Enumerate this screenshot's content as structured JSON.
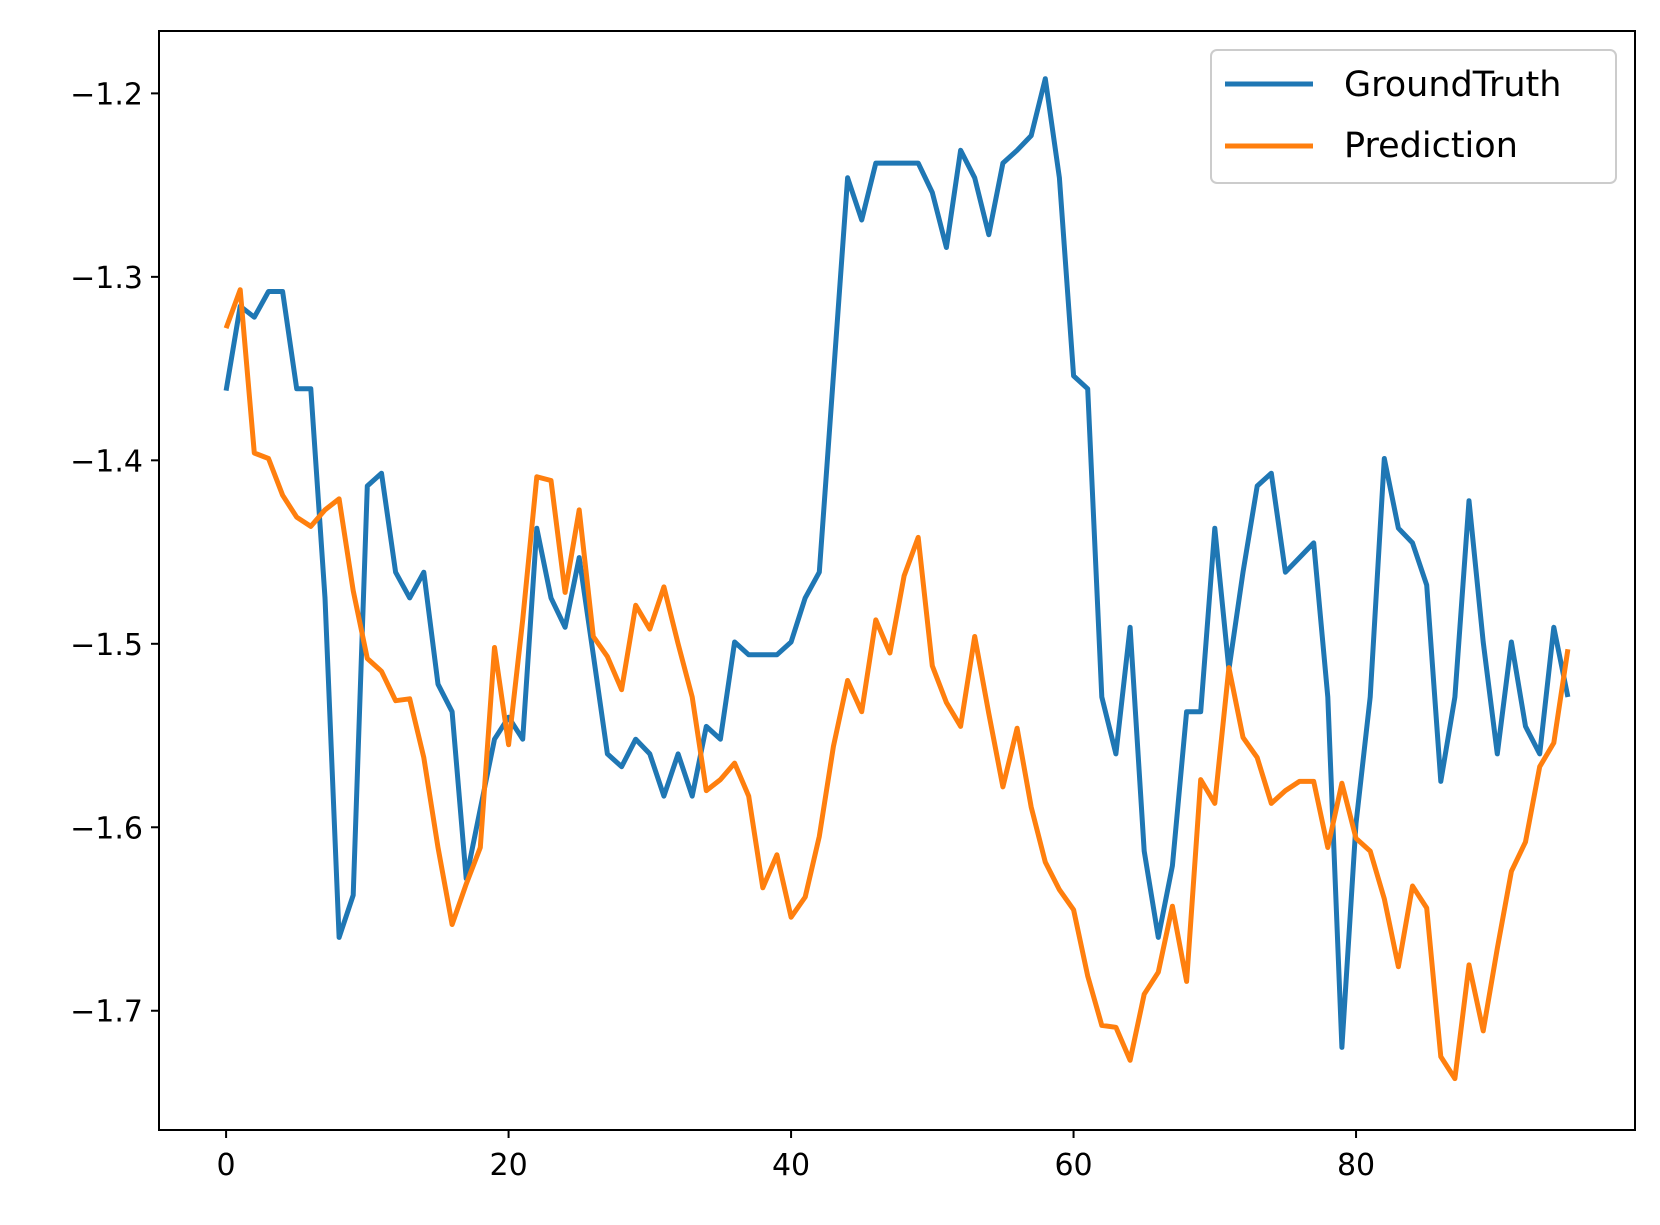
{
  "chart_data": {
    "type": "line",
    "title": "",
    "xlabel": "",
    "ylabel": "",
    "xlim": [
      -4.75,
      99.75
    ],
    "ylim": [
      -1.765,
      -1.166
    ],
    "xticks": [
      0,
      20,
      40,
      60,
      80
    ],
    "yticks": [
      -1.2,
      -1.3,
      -1.4,
      -1.5,
      -1.6,
      -1.7
    ],
    "ytick_labels": [
      "−1.2",
      "−1.3",
      "−1.4",
      "−1.5",
      "−1.6",
      "−1.7"
    ],
    "xtick_labels": [
      "0",
      "20",
      "40",
      "60",
      "80"
    ],
    "grid": false,
    "legend_position": "top-right",
    "series": [
      {
        "name": "GroundTruth",
        "color": "#1f77b4",
        "values": [
          -1.362,
          -1.316,
          -1.322,
          -1.308,
          -1.308,
          -1.361,
          -1.361,
          -1.475,
          -1.66,
          -1.637,
          -1.414,
          -1.407,
          -1.461,
          -1.475,
          -1.461,
          -1.522,
          -1.537,
          -1.628,
          -1.59,
          -1.552,
          -1.54,
          -1.552,
          -1.437,
          -1.475,
          -1.491,
          -1.453,
          -1.506,
          -1.56,
          -1.567,
          -1.552,
          -1.56,
          -1.583,
          -1.56,
          -1.583,
          -1.545,
          -1.552,
          -1.499,
          -1.506,
          -1.506,
          -1.506,
          -1.499,
          -1.475,
          -1.461,
          -1.354,
          -1.246,
          -1.269,
          -1.238,
          -1.238,
          -1.238,
          -1.238,
          -1.254,
          -1.284,
          -1.231,
          -1.246,
          -1.277,
          -1.238,
          -1.231,
          -1.223,
          -1.192,
          -1.246,
          -1.354,
          -1.361,
          -1.529,
          -1.56,
          -1.491,
          -1.613,
          -1.66,
          -1.621,
          -1.537,
          -1.537,
          -1.437,
          -1.514,
          -1.461,
          -1.414,
          -1.407,
          -1.461,
          -1.453,
          -1.445,
          -1.529,
          -1.72,
          -1.598,
          -1.529,
          -1.399,
          -1.437,
          -1.445,
          -1.468,
          -1.575,
          -1.529,
          -1.422,
          -1.499,
          -1.56,
          -1.499,
          -1.545,
          -1.56,
          -1.491,
          -1.529
        ]
      },
      {
        "name": "Prediction",
        "color": "#ff7f0e",
        "values": [
          -1.328,
          -1.307,
          -1.396,
          -1.399,
          -1.419,
          -1.431,
          -1.436,
          -1.427,
          -1.421,
          -1.471,
          -1.508,
          -1.515,
          -1.531,
          -1.53,
          -1.562,
          -1.611,
          -1.653,
          -1.631,
          -1.611,
          -1.502,
          -1.555,
          -1.487,
          -1.409,
          -1.411,
          -1.472,
          -1.427,
          -1.496,
          -1.507,
          -1.525,
          -1.479,
          -1.492,
          -1.469,
          -1.5,
          -1.529,
          -1.58,
          -1.574,
          -1.565,
          -1.583,
          -1.633,
          -1.615,
          -1.649,
          -1.638,
          -1.605,
          -1.556,
          -1.52,
          -1.537,
          -1.487,
          -1.505,
          -1.463,
          -1.442,
          -1.512,
          -1.532,
          -1.545,
          -1.496,
          -1.538,
          -1.578,
          -1.546,
          -1.589,
          -1.619,
          -1.634,
          -1.645,
          -1.681,
          -1.708,
          -1.709,
          -1.727,
          -1.691,
          -1.679,
          -1.643,
          -1.684,
          -1.574,
          -1.587,
          -1.513,
          -1.551,
          -1.562,
          -1.587,
          -1.58,
          -1.575,
          -1.575,
          -1.611,
          -1.576,
          -1.606,
          -1.613,
          -1.639,
          -1.676,
          -1.632,
          -1.644,
          -1.725,
          -1.737,
          -1.675,
          -1.711,
          -1.666,
          -1.624,
          -1.608,
          -1.567,
          -1.554,
          -1.503
        ]
      }
    ]
  }
}
